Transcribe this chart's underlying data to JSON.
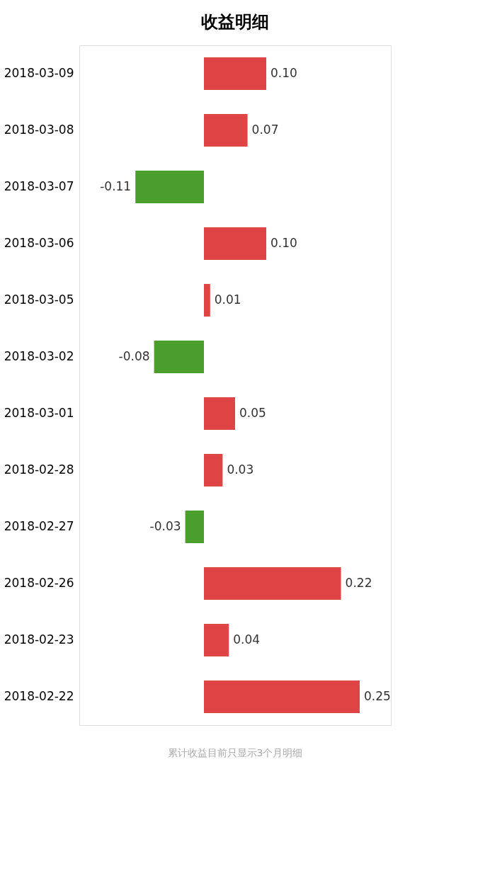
{
  "chart_data": {
    "type": "bar",
    "orientation": "horizontal",
    "title": "收益明细",
    "categories": [
      "2018-03-09",
      "2018-03-08",
      "2018-03-07",
      "2018-03-06",
      "2018-03-05",
      "2018-03-02",
      "2018-03-01",
      "2018-02-28",
      "2018-02-27",
      "2018-02-26",
      "2018-02-23",
      "2018-02-22"
    ],
    "values": [
      0.1,
      0.07,
      -0.11,
      0.1,
      0.01,
      -0.08,
      0.05,
      0.03,
      -0.03,
      0.22,
      0.04,
      0.25
    ],
    "colors": [
      "#e04545",
      "#e04545",
      "#4a9e2c",
      "#e04545",
      "#e04545",
      "#4a9e2c",
      "#e04545",
      "#e04545",
      "#4a9e2c",
      "#e04545",
      "#e04545",
      "#e04545"
    ],
    "value_labels": [
      "0.10",
      "0.07",
      "-0.11",
      "0.10",
      "0.01",
      "-0.08",
      "0.05",
      "0.03",
      "-0.03",
      "0.22",
      "0.04",
      "0.25"
    ],
    "xlim": [
      -0.2,
      0.3
    ],
    "tick_labels": "y",
    "grid": false,
    "annotations": [
      "累计收益目前只显示3个月明细"
    ]
  }
}
